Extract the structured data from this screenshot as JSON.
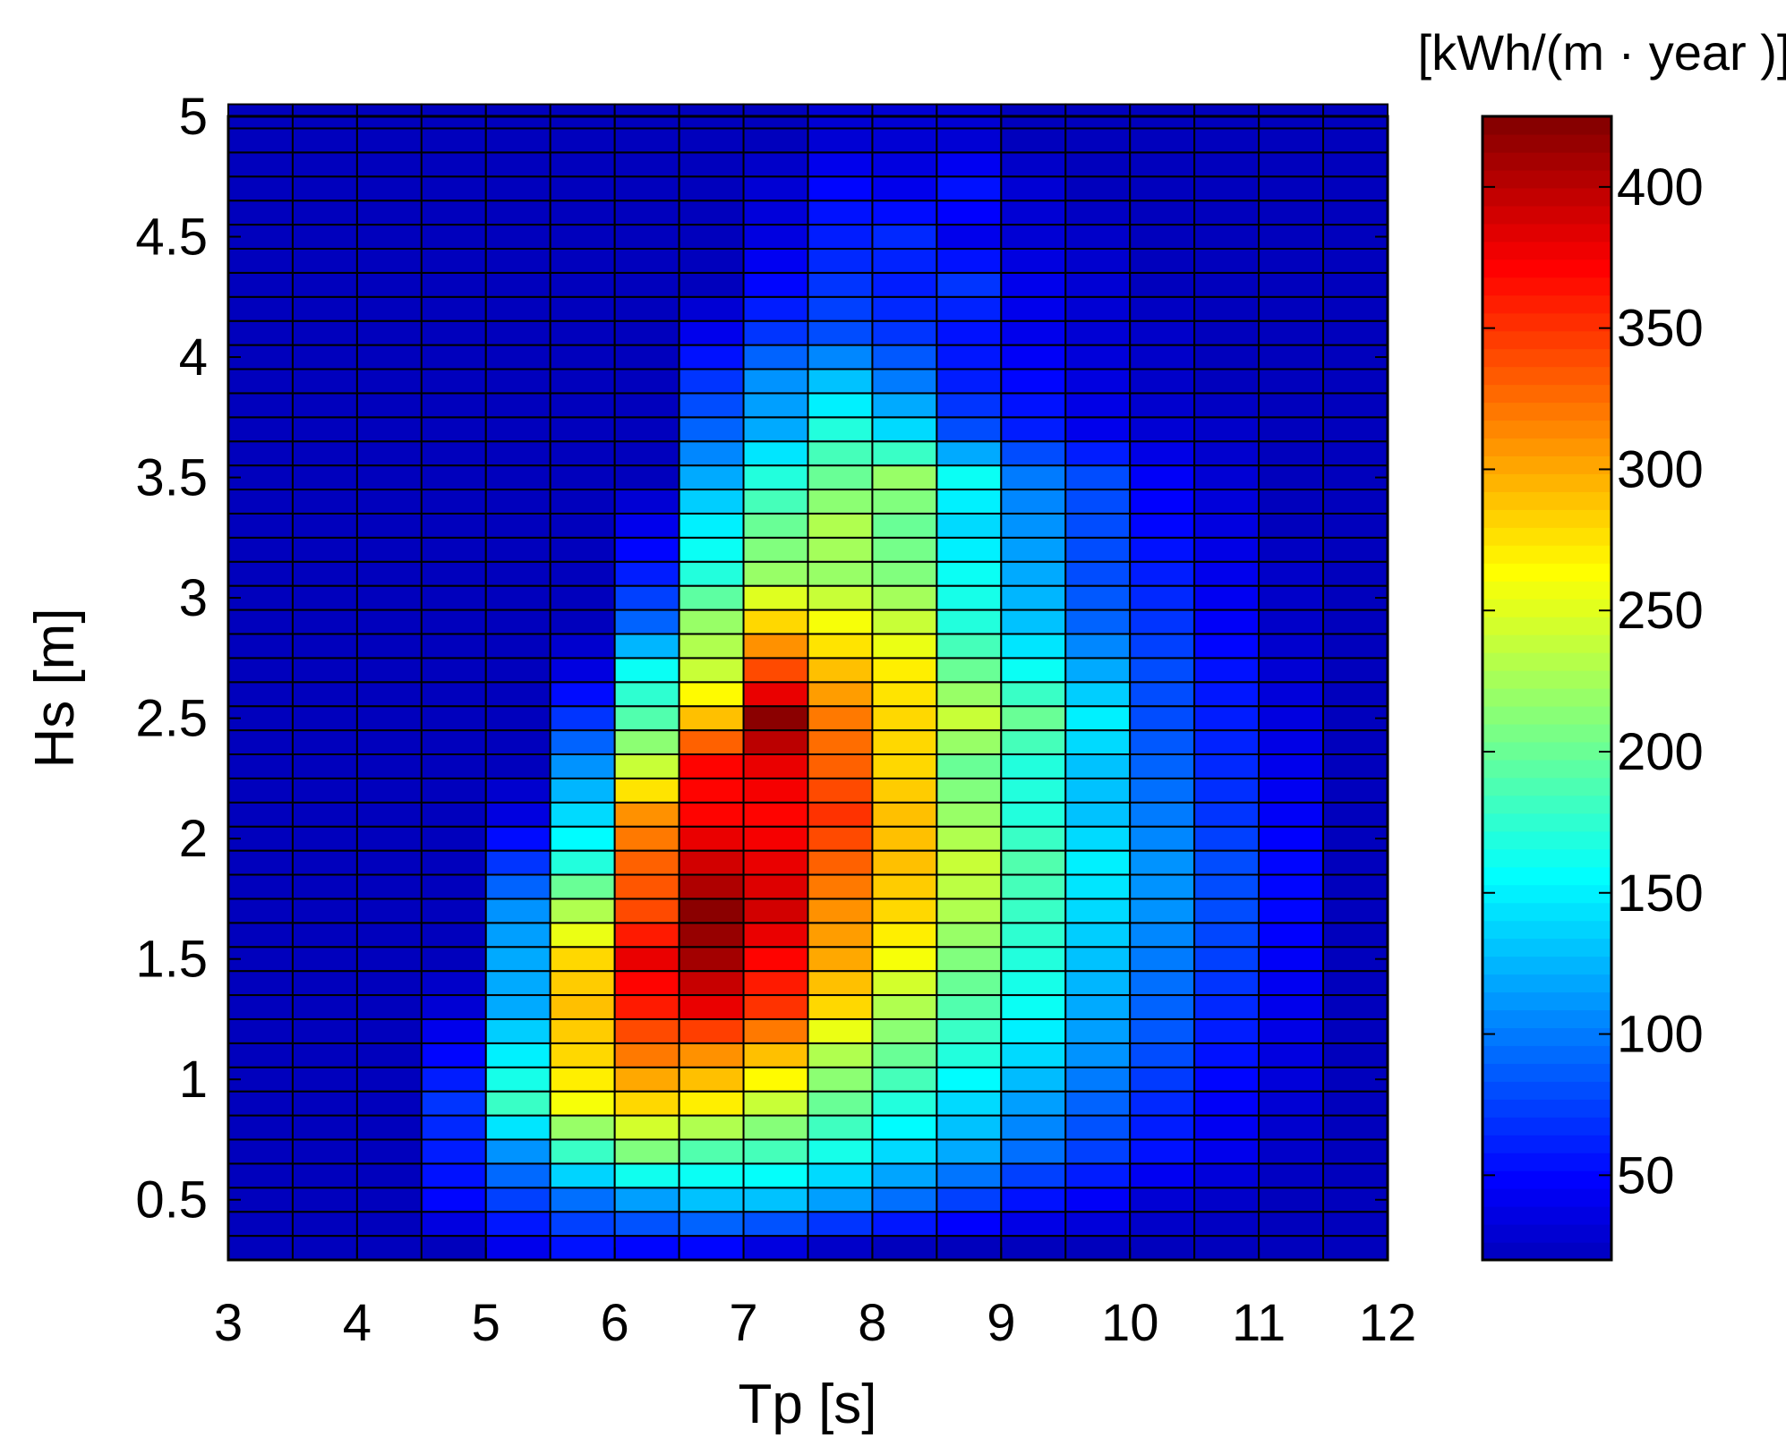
{
  "chart_data": {
    "type": "heatmap",
    "title": "",
    "xlabel": "Tp [s]",
    "ylabel": "Hs [m]",
    "colorbar_label": "[kWh/(m · year )]",
    "colormap": "jet",
    "x_edges_start": 3,
    "x_bin_width": 0.5,
    "y_edges_start": 0.25,
    "y_bin_width": 0.1,
    "xlim": [
      3,
      12
    ],
    "ylim": [
      0.25,
      5
    ],
    "clim": [
      20,
      425
    ],
    "x_ticks": [
      3,
      4,
      5,
      6,
      7,
      8,
      9,
      10,
      11,
      12
    ],
    "y_ticks": [
      0.5,
      1,
      1.5,
      2,
      2.5,
      3,
      3.5,
      4,
      4.5,
      5
    ],
    "x_tick_labels": [
      "3",
      "4",
      "5",
      "6",
      "7",
      "8",
      "9",
      "10",
      "11",
      "12"
    ],
    "y_tick_labels": [
      "0.5",
      "1",
      "1.5",
      "2",
      "2.5",
      "3",
      "3.5",
      "4",
      "4.5",
      "5"
    ],
    "colorbar_ticks": [
      50,
      100,
      150,
      200,
      250,
      300,
      350,
      400
    ],
    "colorbar_tick_labels": [
      "50",
      "100",
      "150",
      "200",
      "250",
      "300",
      "350",
      "400"
    ],
    "anchor_rows": [
      {
        "hs": 0.3,
        "values": [
          20,
          20,
          20,
          20,
          40,
          55,
          50,
          50,
          35,
          25,
          20,
          20,
          20,
          20,
          20,
          20,
          20,
          20
        ]
      },
      {
        "hs": 0.5,
        "values": [
          20,
          20,
          20,
          50,
          75,
          95,
          115,
          130,
          130,
          115,
          95,
          75,
          55,
          45,
          30,
          25,
          20,
          20
        ]
      },
      {
        "hs": 0.7,
        "values": [
          20,
          20,
          20,
          60,
          110,
          180,
          210,
          190,
          185,
          165,
          140,
          120,
          95,
          75,
          55,
          40,
          25,
          20
        ]
      },
      {
        "hs": 0.9,
        "values": [
          20,
          20,
          20,
          70,
          180,
          260,
          280,
          270,
          240,
          200,
          170,
          140,
          115,
          90,
          65,
          45,
          30,
          20
        ]
      },
      {
        "hs": 1.1,
        "values": [
          20,
          20,
          20,
          50,
          150,
          280,
          320,
          310,
          290,
          230,
          200,
          170,
          140,
          110,
          80,
          55,
          35,
          20
        ]
      },
      {
        "hs": 1.3,
        "values": [
          20,
          20,
          20,
          30,
          120,
          290,
          360,
          380,
          350,
          280,
          230,
          190,
          160,
          120,
          90,
          65,
          40,
          20
        ]
      },
      {
        "hs": 1.5,
        "values": [
          20,
          20,
          20,
          20,
          120,
          280,
          380,
          410,
          370,
          300,
          260,
          210,
          170,
          130,
          100,
          75,
          45,
          20
        ]
      },
      {
        "hs": 1.7,
        "values": [
          20,
          20,
          20,
          20,
          110,
          230,
          340,
          420,
          390,
          310,
          280,
          230,
          180,
          140,
          110,
          80,
          50,
          20
        ]
      },
      {
        "hs": 1.9,
        "values": [
          20,
          20,
          20,
          20,
          70,
          170,
          330,
          390,
          380,
          330,
          290,
          240,
          190,
          150,
          110,
          80,
          50,
          20
        ]
      },
      {
        "hs": 2.1,
        "values": [
          20,
          20,
          20,
          20,
          35,
          140,
          310,
          370,
          370,
          350,
          290,
          220,
          170,
          130,
          100,
          70,
          45,
          20
        ]
      },
      {
        "hs": 2.3,
        "values": [
          20,
          20,
          20,
          20,
          20,
          110,
          240,
          370,
          380,
          330,
          280,
          200,
          170,
          130,
          90,
          65,
          40,
          20
        ]
      },
      {
        "hs": 2.5,
        "values": [
          20,
          20,
          20,
          20,
          20,
          70,
          190,
          290,
          420,
          320,
          280,
          240,
          200,
          150,
          80,
          60,
          35,
          20
        ]
      },
      {
        "hs": 2.7,
        "values": [
          20,
          20,
          20,
          20,
          20,
          35,
          160,
          240,
          340,
          290,
          270,
          200,
          160,
          120,
          80,
          55,
          30,
          20
        ]
      },
      {
        "hs": 2.9,
        "values": [
          20,
          20,
          20,
          20,
          20,
          20,
          90,
          220,
          280,
          260,
          240,
          170,
          130,
          90,
          70,
          45,
          25,
          20
        ]
      },
      {
        "hs": 3.1,
        "values": [
          20,
          20,
          20,
          20,
          20,
          20,
          60,
          170,
          220,
          220,
          210,
          160,
          120,
          80,
          60,
          40,
          25,
          20
        ]
      },
      {
        "hs": 3.3,
        "values": [
          20,
          20,
          20,
          20,
          20,
          20,
          40,
          150,
          200,
          230,
          200,
          140,
          110,
          80,
          50,
          35,
          20,
          20
        ]
      },
      {
        "hs": 3.5,
        "values": [
          20,
          20,
          20,
          20,
          20,
          20,
          20,
          120,
          170,
          200,
          220,
          160,
          100,
          80,
          45,
          30,
          20,
          20
        ]
      },
      {
        "hs": 3.7,
        "values": [
          20,
          20,
          20,
          20,
          20,
          20,
          20,
          90,
          120,
          170,
          140,
          80,
          60,
          40,
          30,
          25,
          20,
          20
        ]
      },
      {
        "hs": 3.9,
        "values": [
          20,
          20,
          20,
          20,
          20,
          20,
          20,
          70,
          110,
          130,
          100,
          60,
          50,
          35,
          25,
          20,
          20,
          20
        ]
      },
      {
        "hs": 4.1,
        "values": [
          20,
          20,
          20,
          20,
          20,
          20,
          20,
          40,
          70,
          80,
          70,
          55,
          40,
          30,
          25,
          20,
          20,
          20
        ]
      },
      {
        "hs": 4.3,
        "values": [
          20,
          20,
          20,
          20,
          20,
          20,
          20,
          20,
          50,
          70,
          60,
          70,
          40,
          30,
          20,
          20,
          20,
          20
        ]
      },
      {
        "hs": 4.5,
        "values": [
          20,
          20,
          20,
          20,
          20,
          20,
          20,
          20,
          35,
          60,
          65,
          40,
          30,
          25,
          20,
          20,
          20,
          20
        ]
      },
      {
        "hs": 4.7,
        "values": [
          20,
          20,
          20,
          20,
          20,
          20,
          20,
          20,
          30,
          50,
          40,
          55,
          30,
          20,
          20,
          20,
          20,
          20
        ]
      },
      {
        "hs": 4.9,
        "values": [
          20,
          20,
          20,
          20,
          20,
          20,
          20,
          20,
          20,
          30,
          30,
          30,
          20,
          20,
          20,
          20,
          20,
          20
        ]
      }
    ]
  }
}
